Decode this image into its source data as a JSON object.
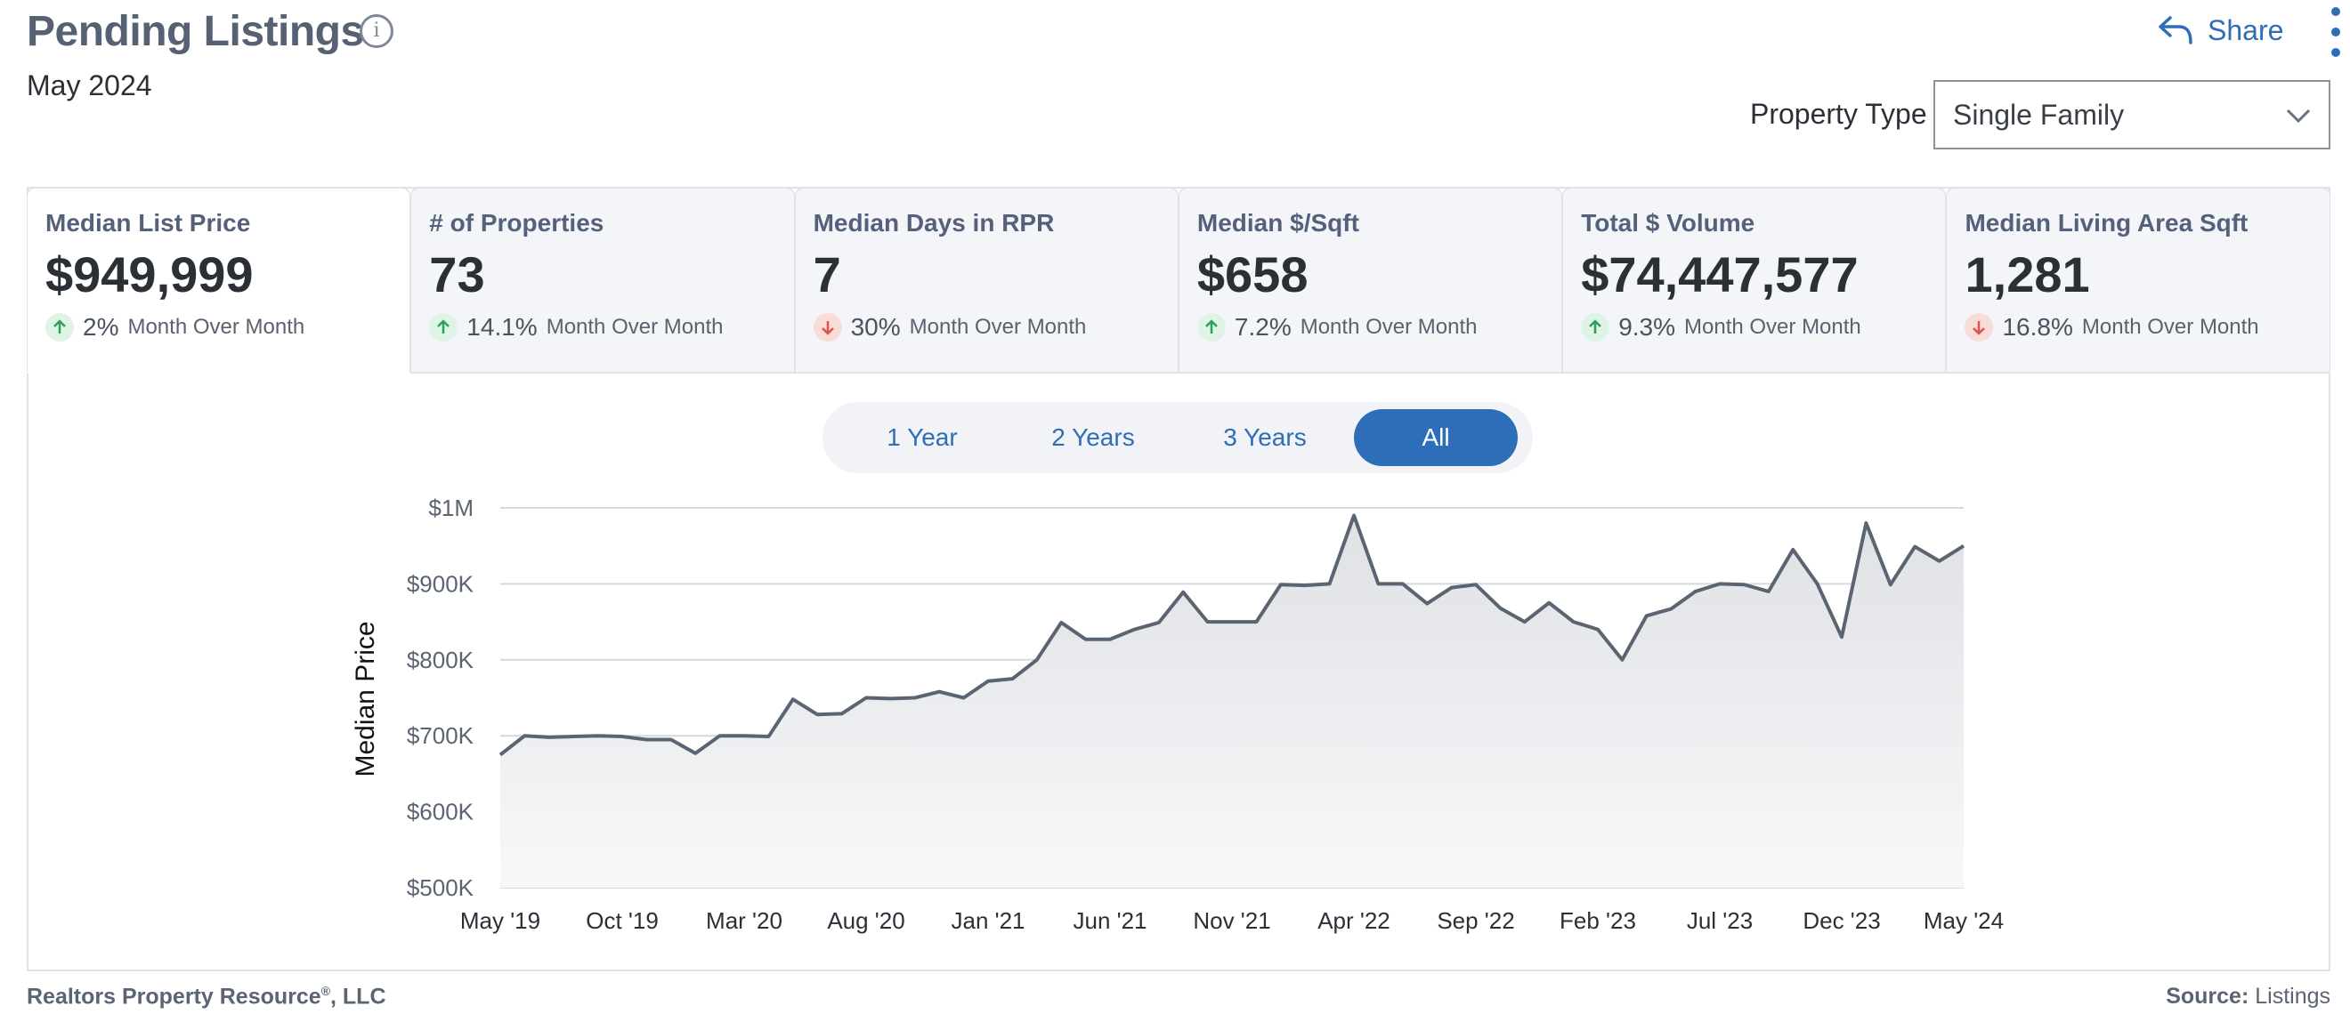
{
  "header": {
    "title": "Pending Listings",
    "subtitle": "May 2024",
    "share_label": "Share",
    "property_type_label": "Property Type",
    "property_type_value": "Single Family"
  },
  "tiles": [
    {
      "label": "Median List Price",
      "value": "$949,999",
      "direction": "up",
      "change": "2%",
      "change_label": "Month Over Month"
    },
    {
      "label": "# of Properties",
      "value": "73",
      "direction": "up",
      "change": "14.1%",
      "change_label": "Month Over Month"
    },
    {
      "label": "Median Days in RPR",
      "value": "7",
      "direction": "down",
      "change": "30%",
      "change_label": "Month Over Month"
    },
    {
      "label": "Median $/Sqft",
      "value": "$658",
      "direction": "up",
      "change": "7.2%",
      "change_label": "Month Over Month"
    },
    {
      "label": "Total $ Volume",
      "value": "$74,447,577",
      "direction": "up",
      "change": "9.3%",
      "change_label": "Month Over Month"
    },
    {
      "label": "Median Living Area Sqft",
      "value": "1,281",
      "direction": "down",
      "change": "16.8%",
      "change_label": "Month Over Month"
    }
  ],
  "range_tabs": [
    {
      "label": "1 Year",
      "active": false
    },
    {
      "label": "2 Years",
      "active": false
    },
    {
      "label": "3 Years",
      "active": false
    },
    {
      "label": "All",
      "active": true
    }
  ],
  "colors": {
    "accent": "#2e6db8",
    "line": "#5b6472",
    "up": "#2fa05a",
    "down": "#d9534f"
  },
  "chart_data": {
    "type": "area",
    "ylabel": "Median Price",
    "ylim": [
      500000,
      1000000
    ],
    "y_ticks": [
      500000,
      600000,
      700000,
      800000,
      900000,
      1000000
    ],
    "y_tick_labels": [
      "$500K",
      "$600K",
      "$700K",
      "$800K",
      "$900K",
      "$1M"
    ],
    "x_tick_labels": [
      "May '19",
      "Oct '19",
      "Mar '20",
      "Aug '20",
      "Jan '21",
      "Jun '21",
      "Nov '21",
      "Apr '22",
      "Sep '22",
      "Feb '23",
      "Jul '23",
      "Dec '23",
      "May '24"
    ],
    "grid": true,
    "series": [
      {
        "x": [
          "May '19",
          "Jun '19",
          "Jul '19",
          "Aug '19",
          "Sep '19",
          "Oct '19",
          "Nov '19",
          "Dec '19",
          "Jan '20",
          "Feb '20",
          "Mar '20",
          "Apr '20",
          "May '20",
          "Jun '20",
          "Jul '20",
          "Aug '20",
          "Sep '20",
          "Oct '20",
          "Nov '20",
          "Dec '20",
          "Jan '21",
          "Feb '21",
          "Mar '21",
          "Apr '21",
          "May '21",
          "Jun '21",
          "Jul '21",
          "Aug '21",
          "Sep '21",
          "Oct '21",
          "Nov '21",
          "Dec '21",
          "Jan '22",
          "Feb '22",
          "Mar '22",
          "Apr '22",
          "May '22",
          "Jun '22",
          "Jul '22",
          "Aug '22",
          "Sep '22",
          "Oct '22",
          "Nov '22",
          "Dec '22",
          "Jan '23",
          "Feb '23",
          "Mar '23",
          "Apr '23",
          "May '23",
          "Jun '23",
          "Jul '23",
          "Aug '23",
          "Sep '23",
          "Oct '23",
          "Nov '23",
          "Dec '23",
          "Jan '24",
          "Feb '24",
          "Mar '24",
          "Apr '24",
          "May '24"
        ],
        "values": [
          675000,
          700000,
          698000,
          699000,
          700000,
          699000,
          695000,
          695000,
          677000,
          700000,
          700000,
          699000,
          748000,
          728000,
          729000,
          750000,
          749000,
          750000,
          758000,
          750000,
          772000,
          775000,
          800000,
          849000,
          827000,
          827000,
          840000,
          849000,
          889000,
          850000,
          850000,
          850000,
          899000,
          898000,
          900000,
          990000,
          900000,
          900000,
          874000,
          895000,
          899000,
          868000,
          850000,
          875000,
          850000,
          840000,
          800000,
          858000,
          867000,
          890000,
          900000,
          899000,
          890000,
          945000,
          900000,
          830000,
          980000,
          899000,
          949000,
          930000,
          949999
        ]
      }
    ]
  },
  "footer": {
    "company": "Realtors Property Resource",
    "company_mark": "®",
    "company_suffix": ", LLC",
    "source_label": "Source:",
    "source_value": "Listings"
  }
}
